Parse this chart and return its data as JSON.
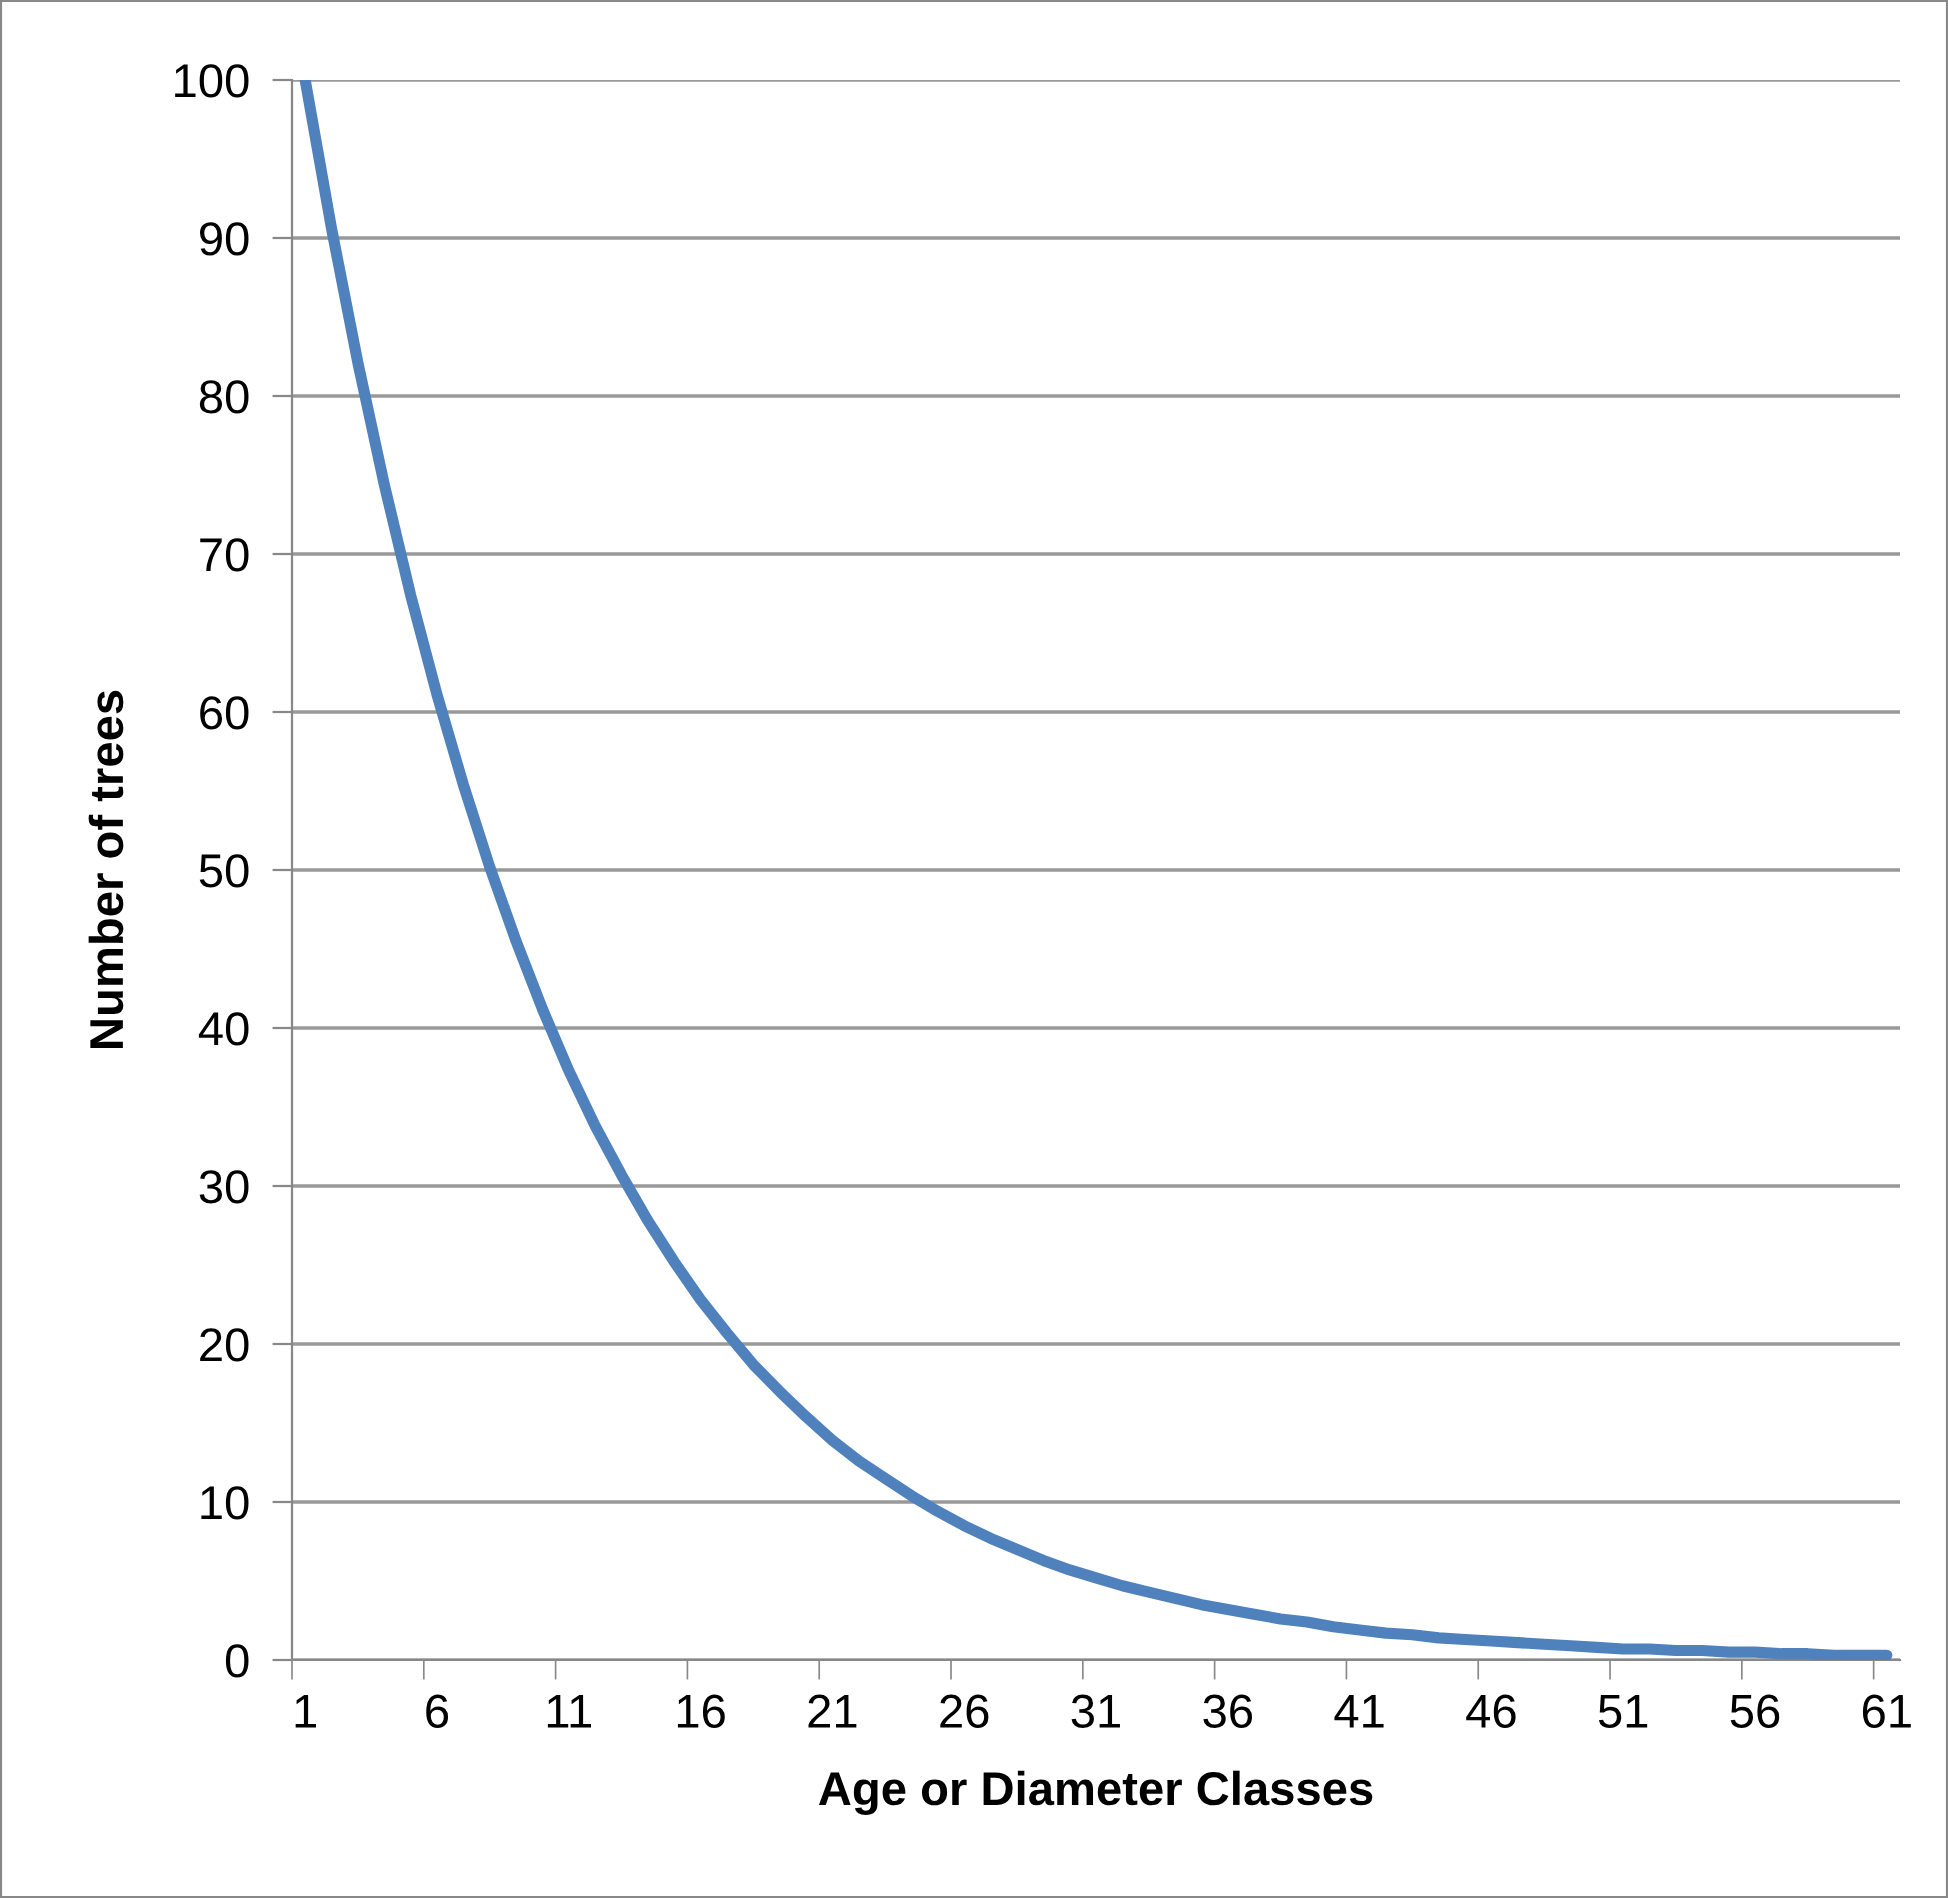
{
  "chart_data": {
    "type": "line",
    "xlabel": "Age or Diameter Classes",
    "ylabel": "Number of trees",
    "categories": [
      "1",
      null,
      null,
      null,
      null,
      "6",
      null,
      null,
      null,
      null,
      "11",
      null,
      null,
      null,
      null,
      "16",
      null,
      null,
      null,
      null,
      "21",
      null,
      null,
      null,
      null,
      "26",
      null,
      null,
      null,
      null,
      "31",
      null,
      null,
      null,
      null,
      "36",
      null,
      null,
      null,
      null,
      "41",
      null,
      null,
      null,
      null,
      "46",
      null,
      null,
      null,
      null,
      "51",
      null,
      null,
      null,
      null,
      "56",
      null,
      null,
      null,
      null,
      "61"
    ],
    "series": [
      {
        "color": "#4f81bd",
        "values": [
          100,
          90.6,
          82.1,
          74.4,
          67.4,
          61.1,
          55.4,
          50.2,
          45.5,
          41.2,
          37.3,
          33.8,
          30.7,
          27.8,
          25.2,
          22.8,
          20.7,
          18.7,
          17.0,
          15.4,
          13.9,
          12.6,
          11.5,
          10.4,
          9.4,
          8.5,
          7.7,
          7.0,
          6.3,
          5.7,
          5.2,
          4.7,
          4.3,
          3.9,
          3.5,
          3.2,
          2.9,
          2.6,
          2.4,
          2.1,
          1.9,
          1.7,
          1.6,
          1.4,
          1.3,
          1.2,
          1.1,
          1.0,
          0.9,
          0.8,
          0.7,
          0.7,
          0.6,
          0.6,
          0.5,
          0.5,
          0.4,
          0.4,
          0.3,
          0.3,
          0.3
        ]
      }
    ],
    "ylim": [
      0,
      100
    ],
    "yticks": [
      0,
      10,
      20,
      30,
      40,
      50,
      60,
      70,
      80,
      90,
      100
    ],
    "grid": "y",
    "marker": "none",
    "line_style": "solid"
  }
}
